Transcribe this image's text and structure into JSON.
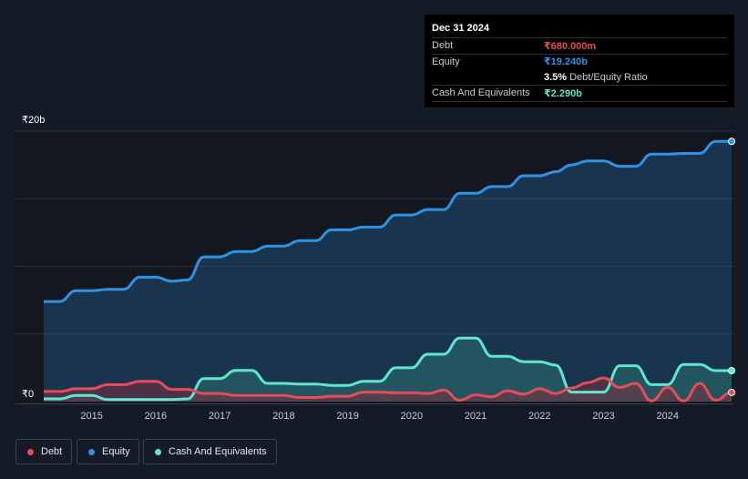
{
  "chart_data": {
    "type": "area",
    "title": "",
    "xlabel": "",
    "ylabel": "",
    "ylim": [
      0,
      20
    ],
    "y_ticks": [
      {
        "value": 0,
        "label": "₹0"
      },
      {
        "value": 20,
        "label": "₹20b"
      }
    ],
    "x_ticks": [
      "2015",
      "2016",
      "2017",
      "2018",
      "2019",
      "2020",
      "2021",
      "2022",
      "2023",
      "2024"
    ],
    "x_range": [
      2014.25,
      2025.0
    ],
    "units": "₹ billions",
    "series": [
      {
        "name": "Equity",
        "color": "#2e93e6",
        "points": [
          [
            2014.25,
            7.4
          ],
          [
            2014.5,
            7.4
          ],
          [
            2014.75,
            8.2
          ],
          [
            2015.0,
            8.2
          ],
          [
            2015.25,
            8.3
          ],
          [
            2015.5,
            8.3
          ],
          [
            2015.75,
            9.2
          ],
          [
            2016.0,
            9.2
          ],
          [
            2016.25,
            8.9
          ],
          [
            2016.5,
            9.0
          ],
          [
            2016.75,
            10.7
          ],
          [
            2017.0,
            10.7
          ],
          [
            2017.25,
            11.1
          ],
          [
            2017.5,
            11.1
          ],
          [
            2017.75,
            11.5
          ],
          [
            2018.0,
            11.5
          ],
          [
            2018.25,
            11.9
          ],
          [
            2018.5,
            11.9
          ],
          [
            2018.75,
            12.7
          ],
          [
            2019.0,
            12.7
          ],
          [
            2019.25,
            12.9
          ],
          [
            2019.5,
            12.9
          ],
          [
            2019.75,
            13.8
          ],
          [
            2020.0,
            13.8
          ],
          [
            2020.25,
            14.2
          ],
          [
            2020.5,
            14.2
          ],
          [
            2020.75,
            15.4
          ],
          [
            2021.0,
            15.4
          ],
          [
            2021.25,
            15.9
          ],
          [
            2021.5,
            15.9
          ],
          [
            2021.75,
            16.7
          ],
          [
            2022.0,
            16.7
          ],
          [
            2022.25,
            17.0
          ],
          [
            2022.5,
            17.5
          ],
          [
            2022.75,
            17.8
          ],
          [
            2023.0,
            17.8
          ],
          [
            2023.25,
            17.4
          ],
          [
            2023.5,
            17.4
          ],
          [
            2023.75,
            18.3
          ],
          [
            2024.0,
            18.3
          ],
          [
            2024.25,
            18.35
          ],
          [
            2024.5,
            18.35
          ],
          [
            2024.75,
            19.24
          ],
          [
            2025.0,
            19.24
          ]
        ]
      },
      {
        "name": "Cash And Equivalents",
        "color": "#5ee6cf",
        "points": [
          [
            2014.25,
            0.2
          ],
          [
            2014.5,
            0.2
          ],
          [
            2014.75,
            0.45
          ],
          [
            2015.0,
            0.45
          ],
          [
            2015.25,
            0.15
          ],
          [
            2015.5,
            0.15
          ],
          [
            2015.75,
            0.15
          ],
          [
            2016.0,
            0.15
          ],
          [
            2016.25,
            0.15
          ],
          [
            2016.5,
            0.2
          ],
          [
            2016.75,
            1.7
          ],
          [
            2017.0,
            1.7
          ],
          [
            2017.25,
            2.3
          ],
          [
            2017.5,
            2.3
          ],
          [
            2017.75,
            1.35
          ],
          [
            2018.0,
            1.35
          ],
          [
            2018.25,
            1.3
          ],
          [
            2018.5,
            1.3
          ],
          [
            2018.75,
            1.2
          ],
          [
            2019.0,
            1.2
          ],
          [
            2019.25,
            1.5
          ],
          [
            2019.5,
            1.5
          ],
          [
            2019.75,
            2.5
          ],
          [
            2020.0,
            2.5
          ],
          [
            2020.25,
            3.5
          ],
          [
            2020.5,
            3.5
          ],
          [
            2020.75,
            4.7
          ],
          [
            2021.0,
            4.7
          ],
          [
            2021.25,
            3.35
          ],
          [
            2021.5,
            3.35
          ],
          [
            2021.75,
            2.95
          ],
          [
            2022.0,
            2.95
          ],
          [
            2022.25,
            2.7
          ],
          [
            2022.5,
            0.7
          ],
          [
            2022.75,
            0.7
          ],
          [
            2023.0,
            0.7
          ],
          [
            2023.25,
            2.65
          ],
          [
            2023.5,
            2.65
          ],
          [
            2023.75,
            1.25
          ],
          [
            2024.0,
            1.25
          ],
          [
            2024.25,
            2.75
          ],
          [
            2024.5,
            2.75
          ],
          [
            2024.75,
            2.29
          ],
          [
            2025.0,
            2.29
          ]
        ]
      },
      {
        "name": "Debt",
        "color": "#e64c5a",
        "points": [
          [
            2014.25,
            0.75
          ],
          [
            2014.5,
            0.75
          ],
          [
            2014.75,
            0.95
          ],
          [
            2015.0,
            0.95
          ],
          [
            2015.25,
            1.25
          ],
          [
            2015.5,
            1.25
          ],
          [
            2015.75,
            1.5
          ],
          [
            2016.0,
            1.5
          ],
          [
            2016.25,
            0.9
          ],
          [
            2016.5,
            0.9
          ],
          [
            2016.75,
            0.6
          ],
          [
            2017.0,
            0.6
          ],
          [
            2017.25,
            0.45
          ],
          [
            2017.5,
            0.45
          ],
          [
            2017.75,
            0.45
          ],
          [
            2018.0,
            0.45
          ],
          [
            2018.25,
            0.3
          ],
          [
            2018.5,
            0.3
          ],
          [
            2018.75,
            0.4
          ],
          [
            2019.0,
            0.4
          ],
          [
            2019.25,
            0.7
          ],
          [
            2019.5,
            0.7
          ],
          [
            2019.75,
            0.65
          ],
          [
            2020.0,
            0.65
          ],
          [
            2020.25,
            0.6
          ],
          [
            2020.5,
            0.85
          ],
          [
            2020.75,
            0.1
          ],
          [
            2021.0,
            0.5
          ],
          [
            2021.25,
            0.35
          ],
          [
            2021.5,
            0.8
          ],
          [
            2021.75,
            0.55
          ],
          [
            2022.0,
            0.95
          ],
          [
            2022.25,
            0.6
          ],
          [
            2022.5,
            1.0
          ],
          [
            2022.75,
            1.4
          ],
          [
            2023.0,
            1.75
          ],
          [
            2023.25,
            1.05
          ],
          [
            2023.5,
            1.35
          ],
          [
            2023.75,
            0.05
          ],
          [
            2024.0,
            1.05
          ],
          [
            2024.25,
            0.05
          ],
          [
            2024.5,
            1.35
          ],
          [
            2024.75,
            0.1
          ],
          [
            2025.0,
            0.68
          ]
        ]
      }
    ],
    "legend": [
      "Debt",
      "Equity",
      "Cash And Equivalents"
    ],
    "legend_position": "bottom-left",
    "tooltip": {
      "date": "Dec 31 2024",
      "rows": [
        {
          "label": "Debt",
          "value": "₹680.000m",
          "color": "#e64c5a"
        },
        {
          "label": "Equity",
          "value": "₹19.240b",
          "color": "#2e93e6"
        }
      ],
      "ratio_value": "3.5%",
      "ratio_label": "Debt/Equity Ratio",
      "cash_label": "Cash And Equivalents",
      "cash_value": "₹2.290b",
      "cash_color": "#5ee6cf"
    }
  }
}
